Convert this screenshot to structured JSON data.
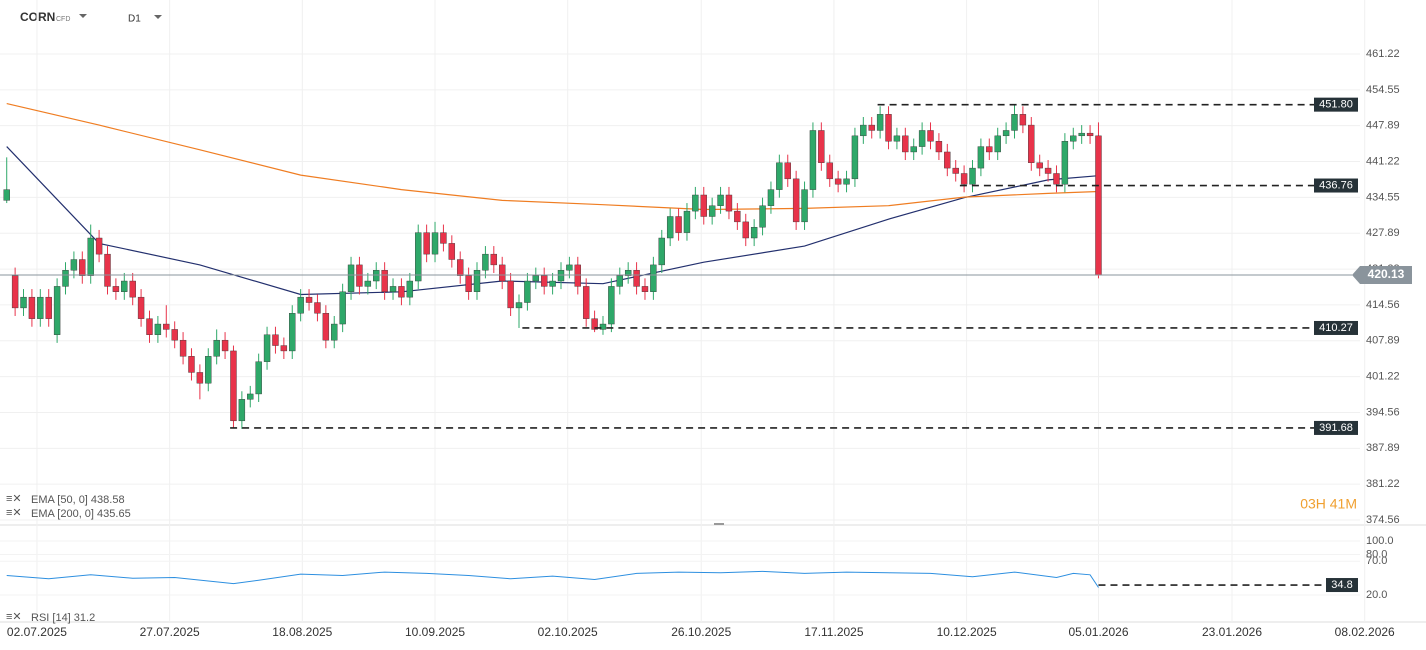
{
  "header": {
    "symbol": "CORN",
    "badge": "CFD",
    "timeframe": "D1",
    "countdown": "03H 41M"
  },
  "chart_data": {
    "type": "candlestick",
    "up_color": "#2ea869",
    "down_color": "#e8334a",
    "candles": [
      [
        434,
        442,
        433.5,
        436
      ],
      [
        420,
        421.5,
        412.5,
        414
      ],
      [
        414,
        417.5,
        412.5,
        416
      ],
      [
        416,
        417.5,
        410.5,
        412
      ],
      [
        412,
        417.5,
        410.5,
        416
      ],
      [
        416,
        417.5,
        410.5,
        412
      ],
      [
        409,
        419.5,
        407.5,
        418
      ],
      [
        418,
        422.5,
        416.5,
        421
      ],
      [
        421,
        424.5,
        419.5,
        423
      ],
      [
        423,
        424.5,
        418.5,
        420
      ],
      [
        420,
        429.5,
        418.5,
        427
      ],
      [
        427,
        428.5,
        422.5,
        424
      ],
      [
        424,
        425.5,
        416.5,
        418
      ],
      [
        418,
        419.5,
        415.5,
        417
      ],
      [
        417,
        420.5,
        415.5,
        419
      ],
      [
        419,
        420.5,
        414.5,
        416
      ],
      [
        416,
        417.5,
        410.5,
        412
      ],
      [
        412,
        413.5,
        407.5,
        409
      ],
      [
        409,
        412.5,
        407.5,
        411
      ],
      [
        411,
        414.5,
        408.5,
        410
      ],
      [
        410,
        411.5,
        406.5,
        408
      ],
      [
        408,
        409.5,
        403.5,
        405
      ],
      [
        405,
        406.5,
        400.5,
        402
      ],
      [
        402,
        403.5,
        397,
        400
      ],
      [
        400,
        406.5,
        398.5,
        405
      ],
      [
        405,
        410,
        403.5,
        408
      ],
      [
        408,
        409.5,
        404.5,
        406
      ],
      [
        406,
        407,
        391.68,
        393
      ],
      [
        393,
        398.5,
        391.5,
        397
      ],
      [
        397,
        399.5,
        395.5,
        398
      ],
      [
        398,
        405.5,
        396.5,
        404
      ],
      [
        404,
        410.5,
        402.5,
        409
      ],
      [
        409,
        410.5,
        405.5,
        407
      ],
      [
        407,
        408.5,
        404.5,
        406
      ],
      [
        406,
        414.5,
        404.5,
        413
      ],
      [
        413,
        417.5,
        411.5,
        416
      ],
      [
        416,
        417.5,
        413.5,
        415
      ],
      [
        415,
        416.5,
        411.5,
        413
      ],
      [
        413,
        414.5,
        406.5,
        408
      ],
      [
        408,
        412.5,
        406.5,
        411
      ],
      [
        411,
        418.5,
        409.5,
        417
      ],
      [
        417,
        423.5,
        415.5,
        422
      ],
      [
        422,
        423.5,
        416.5,
        418
      ],
      [
        418,
        420.5,
        416.5,
        419
      ],
      [
        419,
        422.5,
        417.5,
        421
      ],
      [
        421,
        422.5,
        415.5,
        417
      ],
      [
        417,
        419.5,
        415.5,
        418
      ],
      [
        418,
        419.5,
        414.5,
        416
      ],
      [
        416,
        420.5,
        414.5,
        419
      ],
      [
        419,
        429.5,
        417.5,
        428
      ],
      [
        428,
        429.5,
        422.5,
        424
      ],
      [
        424,
        430,
        422.5,
        428
      ],
      [
        428,
        429.5,
        424.5,
        426
      ],
      [
        426,
        427.5,
        421.5,
        423
      ],
      [
        423,
        424.5,
        418.5,
        420
      ],
      [
        420,
        421.5,
        415.5,
        417
      ],
      [
        417,
        422.5,
        415.5,
        421
      ],
      [
        421,
        425.5,
        419.5,
        424
      ],
      [
        424,
        425.5,
        420.5,
        422
      ],
      [
        422,
        423.5,
        417.5,
        419
      ],
      [
        419,
        420.5,
        412.5,
        414
      ],
      [
        414,
        416.5,
        410.27,
        415
      ],
      [
        415,
        420.5,
        413.5,
        419
      ],
      [
        419,
        421.5,
        417.5,
        420
      ],
      [
        420,
        421.5,
        416.5,
        418
      ],
      [
        418,
        420.5,
        416.5,
        419
      ],
      [
        419,
        422.5,
        417.5,
        421
      ],
      [
        421,
        423.5,
        419.5,
        422
      ],
      [
        422,
        423.5,
        416.5,
        418
      ],
      [
        418,
        419.5,
        410.5,
        412
      ],
      [
        412,
        413.5,
        409.5,
        410
      ],
      [
        410,
        412.5,
        409,
        411
      ],
      [
        411,
        419.5,
        409.5,
        418
      ],
      [
        418,
        421.5,
        416.5,
        420
      ],
      [
        420,
        422.5,
        418.5,
        421
      ],
      [
        421,
        422.5,
        416.5,
        418
      ],
      [
        418,
        419.5,
        415.5,
        417
      ],
      [
        417,
        423.5,
        415.5,
        422
      ],
      [
        422,
        428.5,
        420.5,
        427
      ],
      [
        427,
        432.5,
        425.5,
        431
      ],
      [
        431,
        432.5,
        426.5,
        428
      ],
      [
        428,
        433.5,
        426.5,
        432
      ],
      [
        432,
        436.5,
        430.5,
        435
      ],
      [
        435,
        436.5,
        429.5,
        431
      ],
      [
        431,
        434.5,
        429.5,
        433
      ],
      [
        433,
        436.5,
        431.5,
        435
      ],
      [
        435,
        436.5,
        430.5,
        432
      ],
      [
        432,
        433.5,
        428.5,
        430
      ],
      [
        430,
        431.5,
        425.5,
        427
      ],
      [
        427,
        430.5,
        425.5,
        429
      ],
      [
        429,
        434.5,
        427.5,
        433
      ],
      [
        433,
        437.5,
        431.5,
        436
      ],
      [
        436,
        442.5,
        434.5,
        441
      ],
      [
        441,
        442.5,
        436.5,
        438
      ],
      [
        438,
        439.5,
        428.5,
        430
      ],
      [
        430,
        437.5,
        428.5,
        436
      ],
      [
        436,
        448.5,
        434.5,
        447
      ],
      [
        447,
        448.5,
        439.5,
        441
      ],
      [
        441,
        442.5,
        436.5,
        438
      ],
      [
        438,
        439.5,
        435.5,
        437
      ],
      [
        437,
        439.5,
        435.5,
        438
      ],
      [
        438,
        447.5,
        436.5,
        446
      ],
      [
        446,
        449.5,
        444.5,
        448
      ],
      [
        448,
        449.5,
        445.5,
        447
      ],
      [
        447,
        451.5,
        445.5,
        450
      ],
      [
        450,
        451.5,
        443.5,
        445
      ],
      [
        445,
        447.5,
        443.5,
        446
      ],
      [
        446,
        447.5,
        441.5,
        443
      ],
      [
        443,
        445.5,
        441.5,
        444
      ],
      [
        444,
        448.5,
        442.5,
        447
      ],
      [
        447,
        448.5,
        443.5,
        445
      ],
      [
        445,
        446.5,
        441.5,
        443
      ],
      [
        443,
        444.5,
        438.5,
        440
      ],
      [
        440,
        441.5,
        437.5,
        439
      ],
      [
        439,
        440.5,
        435.5,
        437
      ],
      [
        437,
        441.5,
        435.5,
        440
      ],
      [
        440,
        445.5,
        438.5,
        444
      ],
      [
        444,
        445.5,
        441.5,
        443
      ],
      [
        443,
        447.5,
        441.5,
        446
      ],
      [
        446,
        448.5,
        444.5,
        447
      ],
      [
        447,
        451.8,
        445.5,
        450
      ],
      [
        450,
        451.5,
        446.5,
        448
      ],
      [
        448,
        449.5,
        439.5,
        441
      ],
      [
        441,
        442.5,
        438.5,
        440
      ],
      [
        440,
        441.5,
        437.5,
        439
      ],
      [
        439,
        440.5,
        435.5,
        437
      ],
      [
        437,
        446.5,
        435.5,
        445
      ],
      [
        445,
        447.5,
        443.5,
        446
      ],
      [
        446,
        448,
        444.5,
        446.5
      ],
      [
        446.5,
        448,
        444.5,
        446
      ],
      [
        446,
        448.5,
        419.5,
        420.13
      ]
    ],
    "series": [
      {
        "name": "EMA [50, 0] 438.58",
        "color": "#23306e",
        "x": [
          0,
          11,
          23,
          35,
          47,
          59,
          71,
          83,
          95,
          105,
          114,
          124,
          130
        ],
        "values": [
          444,
          426,
          422,
          416.5,
          417,
          419,
          418.5,
          422.5,
          425.5,
          430.5,
          434.5,
          437.8,
          438.58
        ]
      },
      {
        "name": "EMA [200, 0] 435.65",
        "color": "#ef7d22",
        "x": [
          0,
          11,
          23,
          35,
          47,
          59,
          71,
          83,
          95,
          105,
          114,
          124,
          130
        ],
        "values": [
          452,
          448,
          443.4,
          438.7,
          436,
          434,
          433.2,
          432.3,
          432.5,
          433,
          434.6,
          435.3,
          435.65
        ]
      }
    ],
    "levels": [
      {
        "value": 451.8,
        "label": "451.80",
        "start": 103.7
      },
      {
        "value": 436.76,
        "label": "436.76",
        "start": 113.5
      },
      {
        "value": 410.27,
        "label": "410.27",
        "start": 61.4
      },
      {
        "value": 391.68,
        "label": "391.68",
        "start": 26.6
      }
    ],
    "last": 420.13,
    "xlim": [
      -0.8,
      169
    ],
    "ylim": [
      373.63,
      471.26
    ],
    "yticks": [
      461.22,
      454.55,
      447.89,
      441.22,
      434.55,
      427.89,
      421.22,
      414.56,
      407.89,
      401.22,
      394.56,
      387.89,
      381.22,
      374.56
    ],
    "xticks": [
      {
        "value": 3.6,
        "label": "02.07.2025"
      },
      {
        "value": 19.4,
        "label": "27.07.2025"
      },
      {
        "value": 35.2,
        "label": "18.08.2025"
      },
      {
        "value": 51,
        "label": "10.09.2025"
      },
      {
        "value": 66.8,
        "label": "02.10.2025"
      },
      {
        "value": 82.7,
        "label": "26.10.2025"
      },
      {
        "value": 98.5,
        "label": "17.11.2025"
      },
      {
        "value": 114.3,
        "label": "10.12.2025"
      },
      {
        "value": 130,
        "label": "05.01.2026"
      },
      {
        "value": 145.9,
        "label": "23.01.2026"
      },
      {
        "value": 161.7,
        "label": "08.02.2026"
      }
    ],
    "rsi": {
      "name": "RSI [14] 31.2",
      "color": "#2d8fe0",
      "x": [
        0,
        5,
        10,
        15,
        20,
        27,
        30,
        35,
        40,
        45,
        50,
        55,
        60,
        65,
        70,
        75,
        80,
        85,
        90,
        95,
        100,
        105,
        110,
        115,
        120,
        125,
        127,
        129,
        130
      ],
      "values": [
        49,
        44,
        50,
        45,
        46,
        37,
        42,
        51,
        49,
        54,
        52,
        49,
        44,
        48,
        43,
        52,
        54,
        53,
        55,
        52,
        54,
        53,
        52,
        47,
        54,
        46,
        52,
        50,
        31.2
      ],
      "level": 34.8,
      "level_start": 130,
      "ylim": [
        -17,
        119.3
      ],
      "yticks": [
        {
          "value": 100,
          "label": "100.0"
        },
        {
          "value": 80,
          "label": "80.0"
        },
        {
          "value": 70,
          "label": "70.0"
        },
        {
          "value": 20,
          "label": "20.0"
        }
      ]
    },
    "grid": true
  }
}
